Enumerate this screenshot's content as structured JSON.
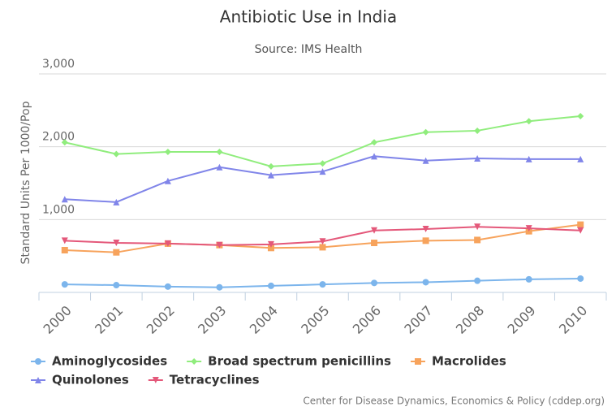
{
  "chart_data": {
    "type": "line",
    "title": "Antibiotic Use in India",
    "subtitle": "Source: IMS Health",
    "y_label": "Standard Units Per 1000/Pop",
    "credit": "Center for Disease Dynamics, Economics & Policy (cddep.org)",
    "categories": [
      "2000",
      "2001",
      "2002",
      "2003",
      "2004",
      "2005",
      "2006",
      "2007",
      "2008",
      "2009",
      "2010"
    ],
    "ylim": [
      0,
      3000
    ],
    "yticks": [
      {
        "value": 1000,
        "label": "1,000"
      },
      {
        "value": 2000,
        "label": "2,000"
      },
      {
        "value": 3000,
        "label": "3,000"
      }
    ],
    "grid": true,
    "series": [
      {
        "name": "Aminoglycosides",
        "color": "#7cb5ec",
        "marker": "circle",
        "values": [
          110,
          100,
          80,
          70,
          90,
          110,
          130,
          140,
          160,
          180,
          190
        ]
      },
      {
        "name": "Broad spectrum penicillins",
        "color": "#90ed7d",
        "marker": "diamond",
        "values": [
          2060,
          1900,
          1930,
          1930,
          1730,
          1770,
          2060,
          2200,
          2220,
          2350,
          2420
        ]
      },
      {
        "name": "Macrolides",
        "color": "#f7a35c",
        "marker": "square",
        "values": [
          580,
          550,
          670,
          650,
          610,
          620,
          680,
          710,
          720,
          840,
          930
        ]
      },
      {
        "name": "Quinolones",
        "color": "#8085e9",
        "marker": "triangle",
        "values": [
          1280,
          1240,
          1530,
          1720,
          1610,
          1660,
          1870,
          1810,
          1840,
          1830,
          1830
        ]
      },
      {
        "name": "Tetracyclines",
        "color": "#e4587a",
        "marker": "triangle-down",
        "values": [
          710,
          680,
          670,
          650,
          660,
          700,
          850,
          870,
          900,
          880,
          850
        ]
      }
    ]
  }
}
